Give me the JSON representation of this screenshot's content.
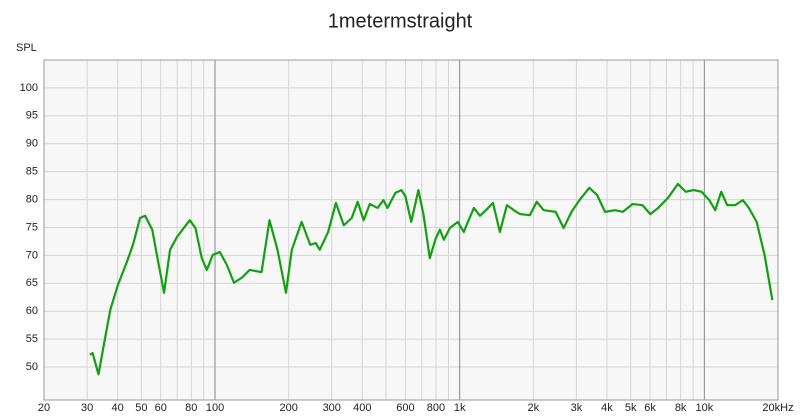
{
  "chart_data": {
    "type": "line",
    "title": "1metermstraight",
    "y_label": "SPL",
    "x": [
      30.8,
      31.6,
      33.4,
      35.1,
      37.3,
      40.1,
      43.6,
      46.2,
      49.4,
      51.8,
      55.4,
      58.6,
      61.9,
      65.5,
      69.9,
      74.5,
      78.9,
      83.2,
      88.3,
      92.6,
      97.9,
      104.6,
      111.8,
      119.5,
      128.7,
      138.5,
      154.9,
      167,
      180,
      195,
      206,
      226,
      245,
      258,
      268,
      290,
      312,
      336,
      362,
      383,
      405,
      429,
      462,
      488,
      507,
      546,
      578,
      600,
      634,
      678,
      712,
      755,
      799,
      830,
      862,
      912,
      982,
      1040,
      1080,
      1143,
      1210,
      1280,
      1368,
      1460,
      1560,
      1665,
      1762,
      1935,
      2066,
      2205,
      2468,
      2660,
      2865,
      3087,
      3386,
      3646,
      3928,
      4309,
      4641,
      5092,
      5586,
      6013,
      6474,
      7105,
      7795,
      8394,
      9039,
      9733,
      10480,
      11080,
      11720,
      12400,
      13350,
      14370,
      15200,
      16360,
      17620,
      18970
    ],
    "values": [
      52.2,
      52.5,
      48.7,
      53.9,
      60.2,
      64.7,
      68.8,
      71.9,
      76.7,
      77.1,
      74.6,
      68.8,
      63.3,
      71.0,
      73.3,
      74.9,
      76.3,
      74.9,
      69.5,
      67.4,
      70.1,
      70.6,
      68.3,
      65.1,
      66.0,
      67.4,
      67.0,
      76.3,
      71.0,
      63.3,
      71.0,
      76.0,
      71.9,
      72.2,
      71.0,
      74.2,
      79.4,
      75.4,
      76.7,
      79.6,
      76.3,
      79.2,
      78.5,
      79.9,
      78.5,
      81.2,
      81.7,
      80.6,
      76.0,
      81.7,
      77.2,
      69.5,
      73.1,
      74.6,
      72.8,
      74.9,
      76.0,
      74.2,
      76.0,
      78.5,
      77.1,
      78.1,
      79.4,
      74.2,
      79.0,
      78.1,
      77.4,
      77.2,
      79.6,
      78.1,
      77.8,
      74.9,
      77.8,
      79.9,
      82.1,
      80.8,
      77.8,
      78.1,
      77.8,
      79.2,
      79.0,
      77.4,
      78.5,
      80.3,
      82.8,
      81.4,
      81.7,
      81.4,
      79.9,
      78.1,
      81.4,
      79.0,
      79.0,
      79.9,
      78.5,
      76.0,
      70.1,
      62.0
    ],
    "color": "#12a012",
    "x_log": true,
    "grid": true,
    "xlim": [
      20,
      20000
    ],
    "ylim": [
      44.1,
      105
    ],
    "xticks": [
      20,
      30,
      40,
      50,
      60,
      80,
      100,
      200,
      300,
      400,
      600,
      800,
      {
        "value": 1000,
        "label": "1k"
      },
      {
        "value": 2000,
        "label": "2k"
      },
      {
        "value": 3000,
        "label": "3k"
      },
      {
        "value": 4000,
        "label": "4k"
      },
      {
        "value": 5000,
        "label": "5k"
      },
      {
        "value": 6000,
        "label": "6k"
      },
      {
        "value": 8000,
        "label": "8k"
      },
      {
        "value": 10000,
        "label": "10k"
      },
      {
        "value": 20000,
        "label": "20kHz"
      }
    ],
    "xminor": [
      70,
      90,
      500,
      700,
      900,
      7000,
      9000
    ],
    "yticks": [
      50,
      55,
      60,
      65,
      70,
      75,
      80,
      85,
      90,
      95,
      100
    ]
  }
}
